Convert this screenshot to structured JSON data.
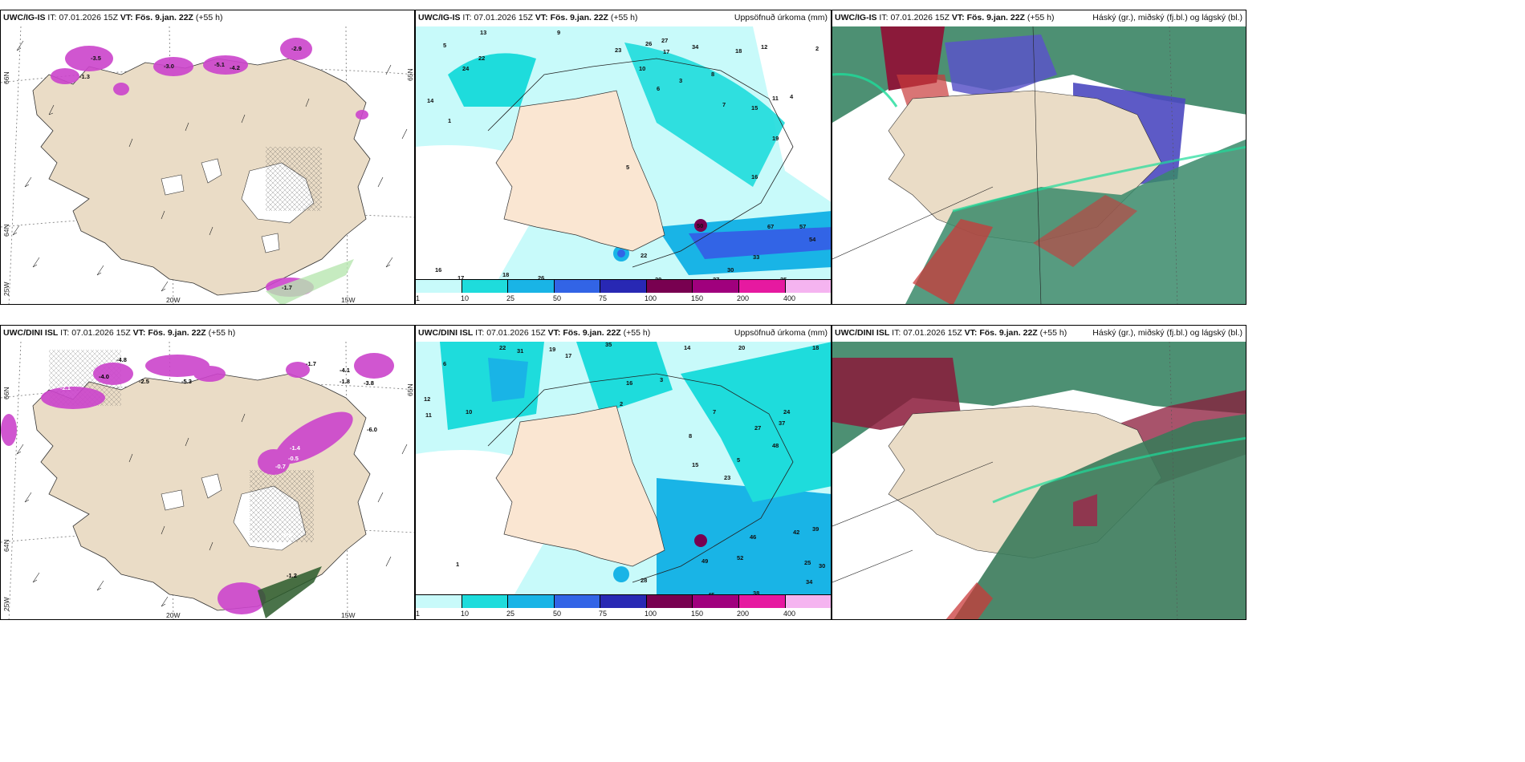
{
  "panels": [
    {
      "id": "top-left",
      "model": "UWC/IG-IS",
      "it_label": "IT:",
      "it": "07.01.2026 15Z",
      "vt_label": "VT:",
      "vt": "Fös. 9.jan. 22Z",
      "lead": "(+55 h)",
      "right_title": "",
      "axis": {
        "lat_a": "66N",
        "lat_b": "64N",
        "lon_a": "20W",
        "lon_b": "15W",
        "lon_c": "25W",
        "lat_r": "65N"
      }
    },
    {
      "id": "top-mid",
      "model": "UWC/IG-IS",
      "it_label": "IT:",
      "it": "07.01.2026 15Z",
      "vt_label": "VT:",
      "vt": "Fös. 9.jan. 22Z",
      "lead": "(+55 h)",
      "right_title": "Uppsöfnuð úrkoma (mm)"
    },
    {
      "id": "top-right",
      "model": "UWC/IG-IS",
      "it_label": "IT:",
      "it": "07.01.2026 15Z",
      "vt_label": "VT:",
      "vt": "Fös. 9.jan. 22Z",
      "lead": "(+55 h)",
      "right_title": "Háský (gr.), miðský (fj.bl.) og lágský (bl.)"
    },
    {
      "id": "bot-left",
      "model": "UWC/DINI ISL",
      "it_label": "IT:",
      "it": "07.01.2026 15Z",
      "vt_label": "VT:",
      "vt": "Fös. 9.jan. 22Z",
      "lead": "(+55 h)",
      "right_title": "",
      "axis": {
        "lat_a": "66N",
        "lat_b": "64N",
        "lon_a": "20W",
        "lon_b": "15W",
        "lon_c": "25W",
        "lat_r": "65N"
      }
    },
    {
      "id": "bot-mid",
      "model": "UWC/DINI ISL",
      "it_label": "IT:",
      "it": "07.01.2026 15Z",
      "vt_label": "VT:",
      "vt": "Fös. 9.jan. 22Z",
      "lead": "(+55 h)",
      "right_title": "Uppsöfnuð úrkoma (mm)"
    },
    {
      "id": "bot-right",
      "model": "UWC/DINI ISL",
      "it_label": "IT:",
      "it": "07.01.2026 15Z",
      "vt_label": "VT:",
      "vt": "Fös. 9.jan. 22Z",
      "lead": "(+55 h)",
      "right_title": "Háský (gr.), miðský (fj.bl.) og lágský (bl.)"
    }
  ],
  "precip_colorbar": {
    "ticks": [
      "1",
      "10",
      "25",
      "50",
      "75",
      "100",
      "150",
      "200",
      "400"
    ],
    "colors": [
      "#c8fafa",
      "#1edcdc",
      "#19b4e6",
      "#3264e6",
      "#2828b4",
      "#780050",
      "#a0007d",
      "#e619a0",
      "#f5b4f0"
    ]
  },
  "temp_labels_top": [
    "-3.0",
    "-1.3",
    "-5.1",
    "-4.2",
    "-3.5",
    "-2.9",
    "-1.7"
  ],
  "temp_labels_bot": [
    "-4.8",
    "-4.0",
    "-2.5",
    "-5.3",
    "-1.7",
    "-4.1",
    "-1.8",
    "-3.8",
    "-6.0",
    "-1.4",
    "-0.7",
    "-0.5",
    "-1.2",
    "-0.6",
    "-2.1"
  ],
  "precip_top": [
    "13",
    "9",
    "22",
    "24",
    "5",
    "14",
    "23",
    "26",
    "27",
    "17",
    "10",
    "6",
    "3",
    "8",
    "7",
    "34",
    "18",
    "12",
    "2",
    "11",
    "4",
    "19",
    "15",
    "16",
    "57",
    "67",
    "54",
    "33",
    "30",
    "25",
    "20",
    "27",
    "50",
    "5",
    "1",
    "17",
    "18",
    "26",
    "22",
    "16"
  ],
  "precip_bot": [
    "22",
    "31",
    "12",
    "11",
    "19",
    "17",
    "6",
    "3",
    "8",
    "7",
    "2",
    "16",
    "14",
    "20",
    "18",
    "35",
    "27",
    "24",
    "37",
    "48",
    "49",
    "38",
    "45",
    "46",
    "52",
    "42",
    "39",
    "25",
    "34",
    "30",
    "10",
    "5",
    "15",
    "23",
    "1",
    "28"
  ]
}
